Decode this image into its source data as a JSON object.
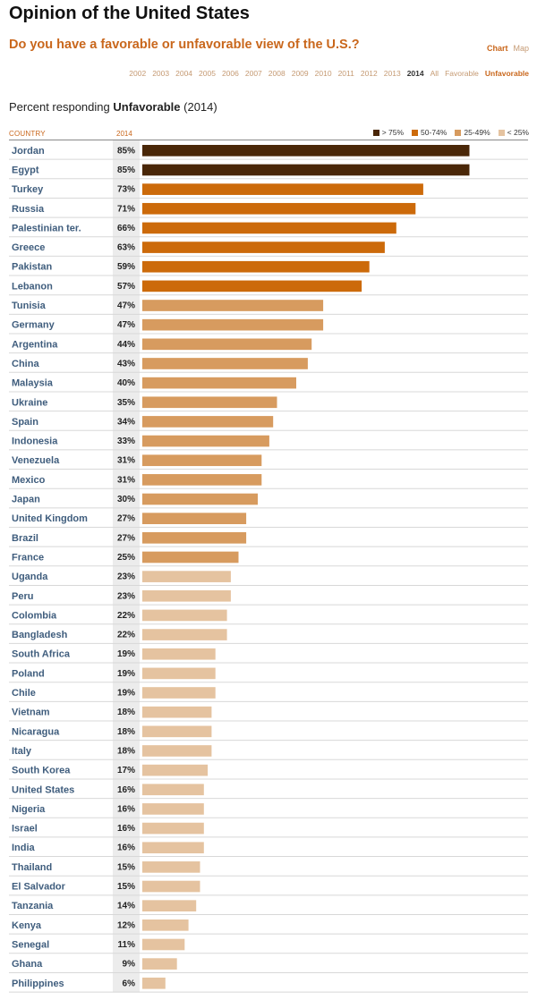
{
  "header": {
    "title": "Opinion of the United States",
    "question": "Do you have a favorable or unfavorable view of the U.S.?",
    "view_chart": "Chart",
    "view_map": "Map"
  },
  "nav": {
    "years": [
      "2002",
      "2003",
      "2004",
      "2005",
      "2006",
      "2007",
      "2008",
      "2009",
      "2010",
      "2011",
      "2012",
      "2013",
      "2014"
    ],
    "all": "All",
    "favorable": "Favorable",
    "unfavorable": "Unfavorable"
  },
  "subtitle": {
    "prefix": "Percent responding",
    "measure": "Unfavorable",
    "year": "(2014)"
  },
  "columns": {
    "country": "COUNTRY",
    "year": "2014"
  },
  "legend": [
    {
      "label": "> 75%",
      "color": "#4a2708"
    },
    {
      "label": "50-74%",
      "color": "#cc6a0a"
    },
    {
      "label": "25-49%",
      "color": "#d79b5f"
    },
    {
      "label": "< 25%",
      "color": "#e5c3a0"
    }
  ],
  "chart_data": {
    "type": "bar",
    "orientation": "horizontal",
    "title": "Percent responding Unfavorable (2014)",
    "xlim": [
      0,
      100
    ],
    "categories": [
      "Jordan",
      "Egypt",
      "Turkey",
      "Russia",
      "Palestinian ter.",
      "Greece",
      "Pakistan",
      "Lebanon",
      "Tunisia",
      "Germany",
      "Argentina",
      "China",
      "Malaysia",
      "Ukraine",
      "Spain",
      "Indonesia",
      "Venezuela",
      "Mexico",
      "Japan",
      "United Kingdom",
      "Brazil",
      "France",
      "Uganda",
      "Peru",
      "Colombia",
      "Bangladesh",
      "South Africa",
      "Poland",
      "Chile",
      "Vietnam",
      "Nicaragua",
      "Italy",
      "South Korea",
      "United States",
      "Nigeria",
      "Israel",
      "India",
      "Thailand",
      "El Salvador",
      "Tanzania",
      "Kenya",
      "Senegal",
      "Ghana",
      "Philippines"
    ],
    "values": [
      85,
      85,
      73,
      71,
      66,
      63,
      59,
      57,
      47,
      47,
      44,
      43,
      40,
      35,
      34,
      33,
      31,
      31,
      30,
      27,
      27,
      25,
      23,
      23,
      22,
      22,
      19,
      19,
      19,
      18,
      18,
      18,
      17,
      16,
      16,
      16,
      16,
      15,
      15,
      14,
      12,
      11,
      9,
      6
    ],
    "value_suffix": "%"
  }
}
